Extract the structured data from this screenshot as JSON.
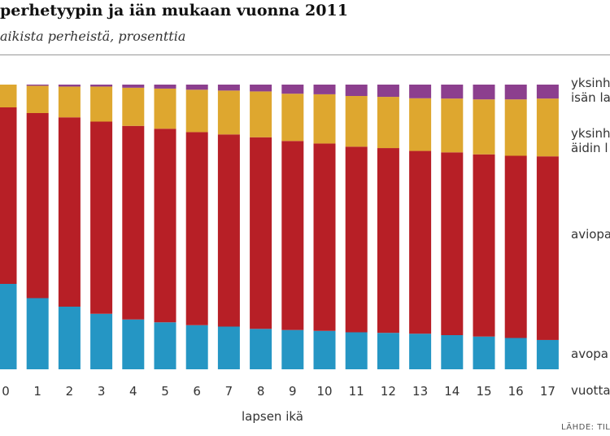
{
  "header": {
    "title": "perhetyypin ja iän mukaan vuonna 2011",
    "subtitle": "aikista perheistä, prosenttia"
  },
  "source": "LÄHDE: TILA",
  "chart_data": {
    "type": "bar",
    "stacked": true,
    "title": "perhetyypin ja iän mukaan vuonna 2011",
    "subtitle": "aikista perheistä, prosenttia",
    "xlabel": "lapsen ikä",
    "ylabel": "",
    "ylim": [
      0,
      100
    ],
    "grid": false,
    "legend_position": "right",
    "categories": [
      "0",
      "1",
      "2",
      "3",
      "4",
      "5",
      "6",
      "7",
      "8",
      "9",
      "10",
      "11",
      "12",
      "13",
      "14",
      "15",
      "16",
      "17"
    ],
    "series": [
      {
        "name": "avopa",
        "color": "#2596c4",
        "values": [
          30,
          25,
          22,
          19.5,
          17.5,
          16.5,
          15.5,
          15,
          14.2,
          13.8,
          13.5,
          13,
          12.8,
          12.5,
          12,
          11.5,
          11,
          10.3
        ]
      },
      {
        "name": "aviopa",
        "color": "#b71f26",
        "values": [
          62,
          65,
          66.5,
          67.5,
          68,
          68,
          67.8,
          67.5,
          67.3,
          66.4,
          65.8,
          65.2,
          64.9,
          64.2,
          64.2,
          64,
          64,
          64.5
        ]
      },
      {
        "name": "yksinh äidin l",
        "color": "#dea72f",
        "values": [
          8,
          9.6,
          10.8,
          12.3,
          13.4,
          14.1,
          14.9,
          15.4,
          16.1,
          16.6,
          17.3,
          17.8,
          18,
          18.5,
          18.9,
          19.3,
          19.8,
          20.3
        ]
      },
      {
        "name": "yksinh isän l",
        "color": "#8c3f8e",
        "values": [
          0,
          0.4,
          0.7,
          0.7,
          1.1,
          1.4,
          1.8,
          2.1,
          2.4,
          3.2,
          3.4,
          4,
          4.3,
          4.8,
          4.9,
          5.2,
          5.2,
          4.9
        ]
      }
    ]
  },
  "legend": {
    "isa_line1": "yksinh",
    "isa_line2": "isän la",
    "aiti_line1": "yksinh",
    "aiti_line2": "äidin l",
    "avio": "aviopa",
    "avo": "avopa",
    "vuotta": "vuotta"
  }
}
